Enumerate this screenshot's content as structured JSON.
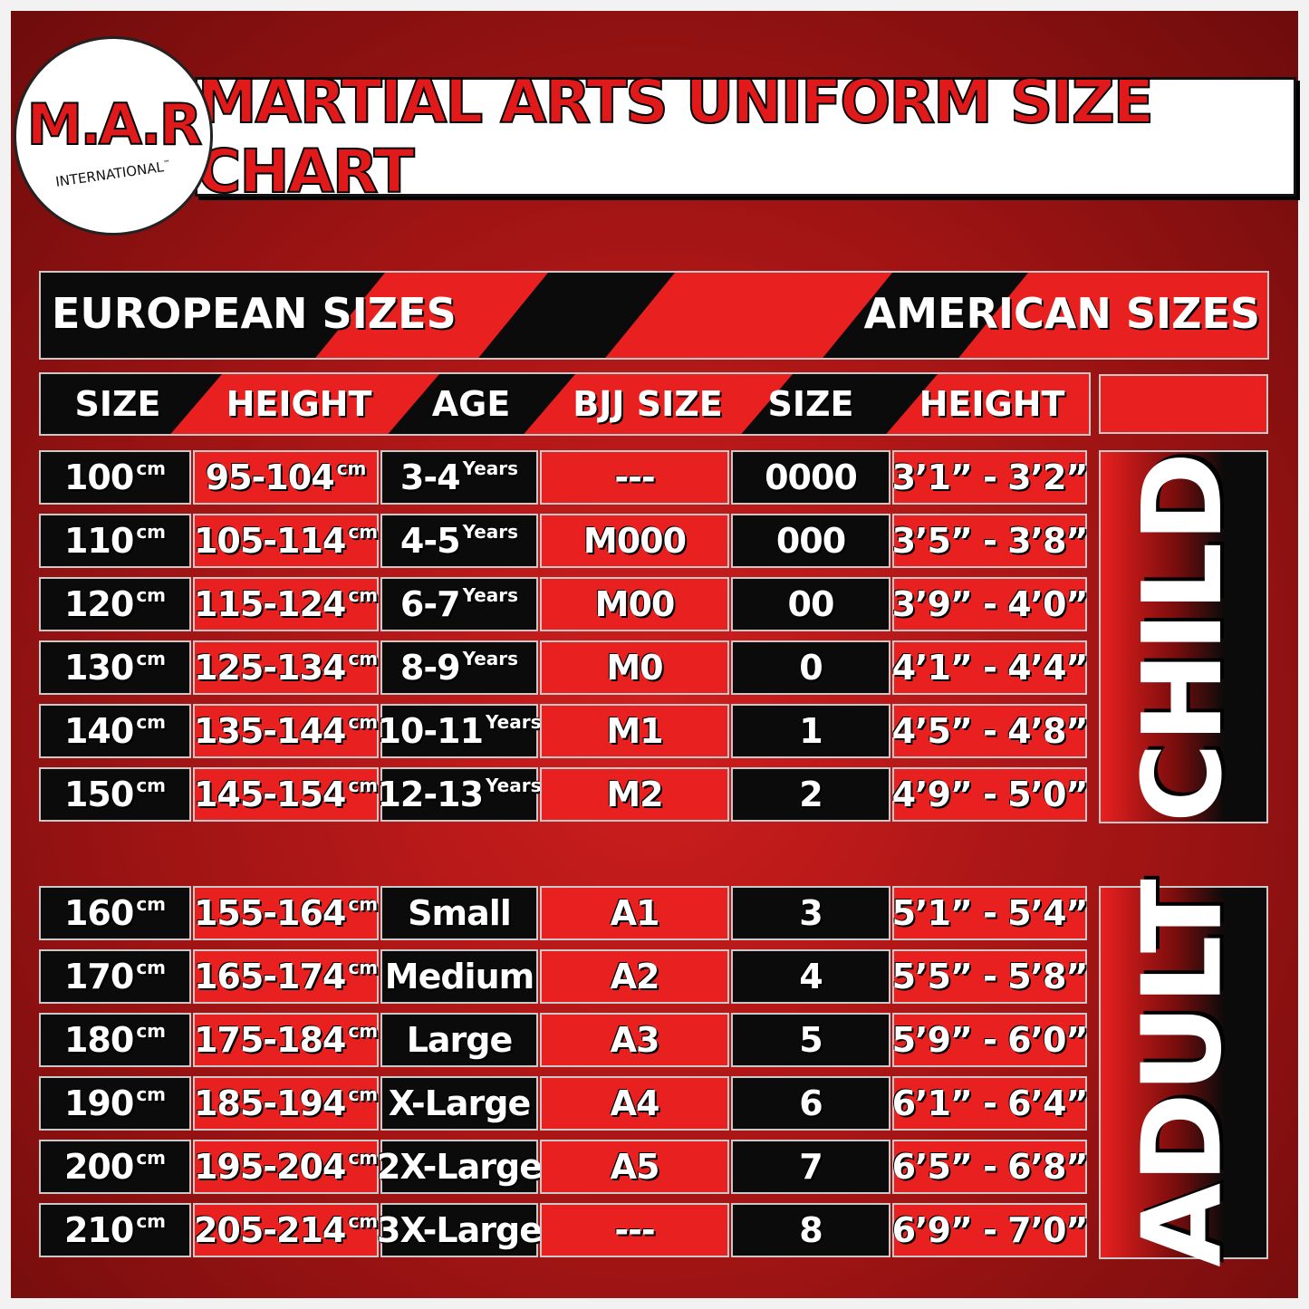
{
  "logo": {
    "name": "M.A.R",
    "subtitle": "INTERNATIONAL",
    "mark": "™"
  },
  "title": "MARTIAL ARTS UNIFORM SIZE CHART",
  "banner": {
    "left": "EUROPEAN SIZES",
    "right": "AMERICAN SIZES"
  },
  "columns": [
    "SIZE",
    "HEIGHT",
    "AGE",
    "BJJ SIZE",
    "SIZE",
    "HEIGHT"
  ],
  "groups": [
    {
      "label": "CHILD",
      "rows": [
        [
          {
            "text": "100",
            "sup": "cm"
          },
          {
            "text": "95-104",
            "sup": "cm"
          },
          {
            "text": "3-4",
            "sup": "Years"
          },
          {
            "text": "---"
          },
          {
            "text": "0000"
          },
          {
            "text": "3’1” - 3’2”"
          }
        ],
        [
          {
            "text": "110",
            "sup": "cm"
          },
          {
            "text": "105-114",
            "sup": "cm"
          },
          {
            "text": "4-5",
            "sup": "Years"
          },
          {
            "text": "M000"
          },
          {
            "text": "000"
          },
          {
            "text": "3’5” - 3’8”"
          }
        ],
        [
          {
            "text": "120",
            "sup": "cm"
          },
          {
            "text": "115-124",
            "sup": "cm"
          },
          {
            "text": "6-7",
            "sup": "Years"
          },
          {
            "text": "M00"
          },
          {
            "text": "00"
          },
          {
            "text": "3’9” - 4’0”"
          }
        ],
        [
          {
            "text": "130",
            "sup": "cm"
          },
          {
            "text": "125-134",
            "sup": "cm"
          },
          {
            "text": "8-9",
            "sup": "Years"
          },
          {
            "text": "M0"
          },
          {
            "text": "0"
          },
          {
            "text": "4’1” - 4’4”"
          }
        ],
        [
          {
            "text": "140",
            "sup": "cm"
          },
          {
            "text": "135-144",
            "sup": "cm"
          },
          {
            "text": "10-11",
            "sup": "Years"
          },
          {
            "text": "M1"
          },
          {
            "text": "1"
          },
          {
            "text": "4’5” - 4’8”"
          }
        ],
        [
          {
            "text": "150",
            "sup": "cm"
          },
          {
            "text": "145-154",
            "sup": "cm"
          },
          {
            "text": "12-13",
            "sup": "Years"
          },
          {
            "text": "M2"
          },
          {
            "text": "2"
          },
          {
            "text": "4’9” - 5’0”"
          }
        ]
      ]
    },
    {
      "label": "ADULT",
      "rows": [
        [
          {
            "text": "160",
            "sup": "cm"
          },
          {
            "text": "155-164",
            "sup": "cm"
          },
          {
            "text": "Small"
          },
          {
            "text": "A1"
          },
          {
            "text": "3"
          },
          {
            "text": "5’1” - 5’4”"
          }
        ],
        [
          {
            "text": "170",
            "sup": "cm"
          },
          {
            "text": "165-174",
            "sup": "cm"
          },
          {
            "text": "Medium"
          },
          {
            "text": "A2"
          },
          {
            "text": "4"
          },
          {
            "text": "5’5” - 5’8”"
          }
        ],
        [
          {
            "text": "180",
            "sup": "cm"
          },
          {
            "text": "175-184",
            "sup": "cm"
          },
          {
            "text": "Large"
          },
          {
            "text": "A3"
          },
          {
            "text": "5"
          },
          {
            "text": "5’9” - 6’0”"
          }
        ],
        [
          {
            "text": "190",
            "sup": "cm"
          },
          {
            "text": "185-194",
            "sup": "cm"
          },
          {
            "text": "X-Large"
          },
          {
            "text": "A4"
          },
          {
            "text": "6"
          },
          {
            "text": "6’1” - 6’4”"
          }
        ],
        [
          {
            "text": "200",
            "sup": "cm"
          },
          {
            "text": "195-204",
            "sup": "cm"
          },
          {
            "text": "2X-Large"
          },
          {
            "text": "A5"
          },
          {
            "text": "7"
          },
          {
            "text": "6’5” - 6’8”"
          }
        ],
        [
          {
            "text": "210",
            "sup": "cm"
          },
          {
            "text": "205-214",
            "sup": "cm"
          },
          {
            "text": "3X-Large"
          },
          {
            "text": "---"
          },
          {
            "text": "8"
          },
          {
            "text": "6’9” - 7’0”"
          }
        ]
      ]
    }
  ]
}
